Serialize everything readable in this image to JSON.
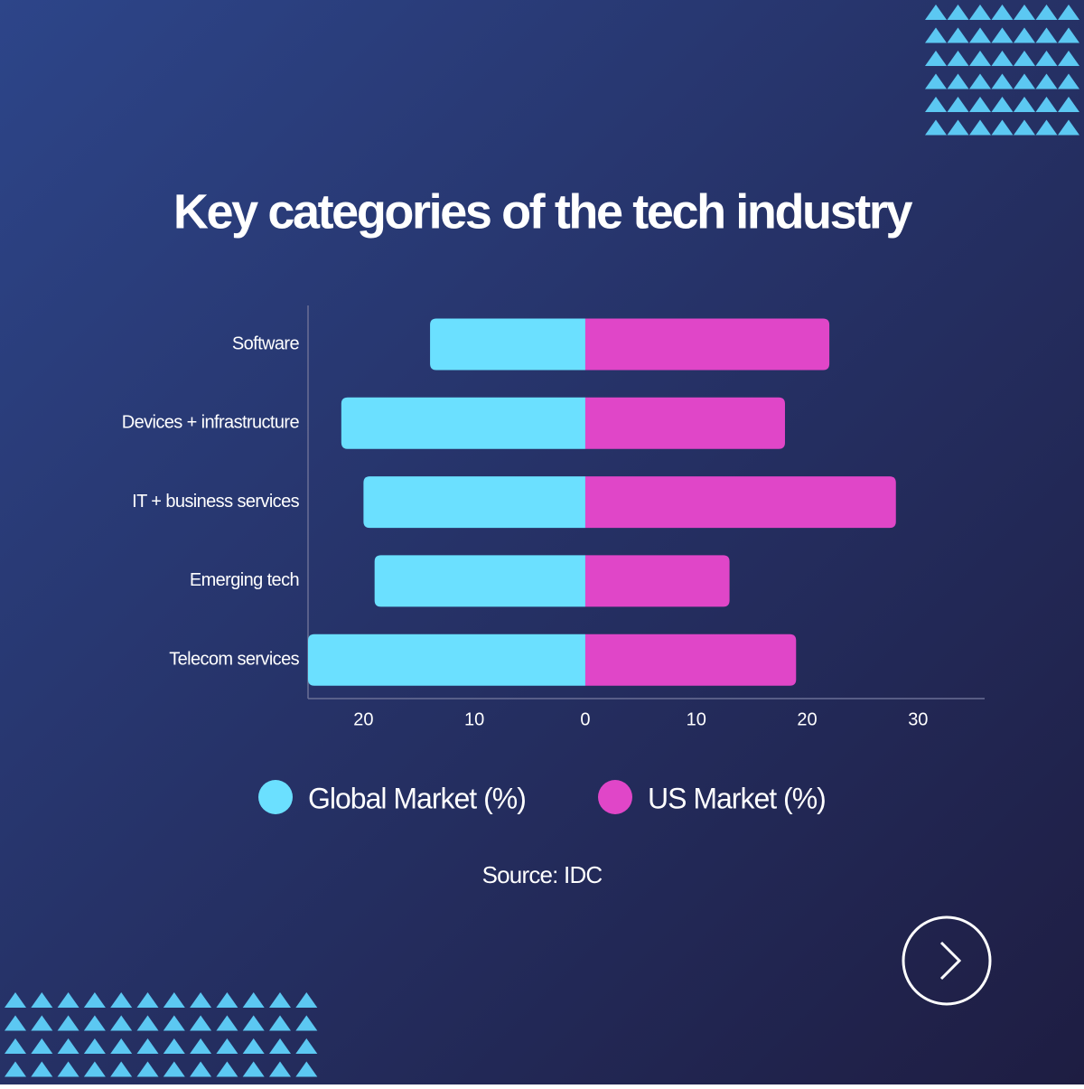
{
  "chart_data": {
    "type": "diverging-bar",
    "title": "Key categories of the tech industry",
    "categories": [
      "Software",
      "Devices + infrastructure",
      "IT + business services",
      "Emerging tech",
      "Telecom services"
    ],
    "series": [
      {
        "name": "Global Market (%)",
        "color": "#6be0ff",
        "values": [
          -14,
          -22,
          -20,
          -19,
          -25
        ]
      },
      {
        "name": "US Market (%)",
        "color": "#e046c8",
        "values": [
          22,
          18,
          28,
          13,
          19
        ]
      }
    ],
    "xlim": [
      -25,
      36
    ],
    "xticks": [
      {
        "value": -20,
        "label": "20"
      },
      {
        "value": -10,
        "label": "10"
      },
      0,
      10,
      20,
      30
    ],
    "grid": false,
    "source": "Source: IDC"
  }
}
